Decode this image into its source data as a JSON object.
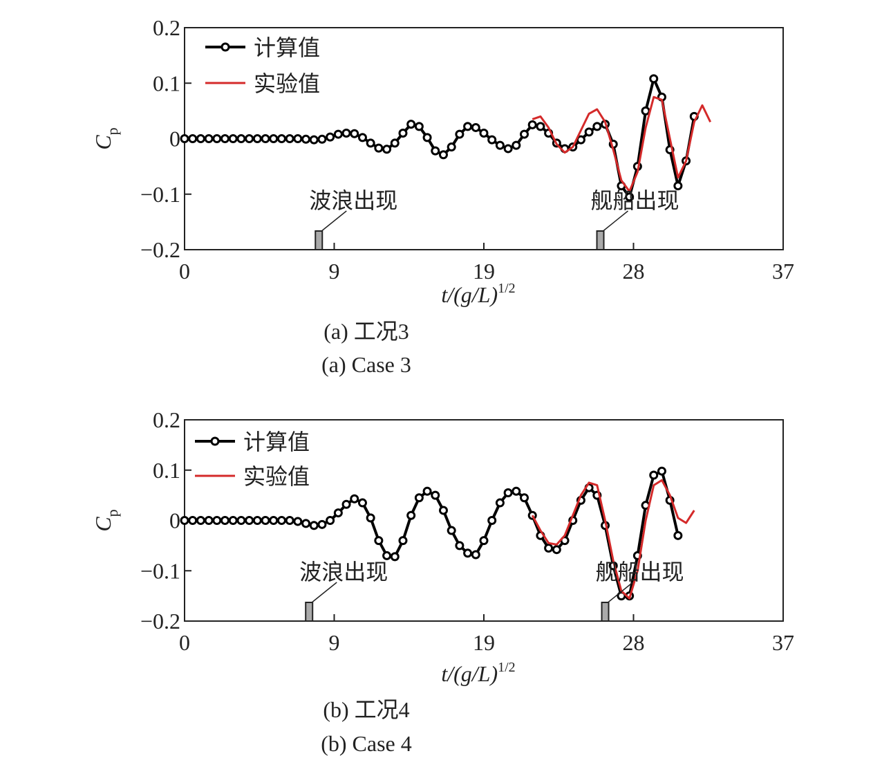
{
  "chart_data": [
    {
      "type": "line",
      "caption": "(a) 工况3",
      "caption_en": "(a) Case 3",
      "ylabel": "C",
      "ylabel_sub": "p",
      "xlabel": "t/(g/L)",
      "xlabel_sup": "1/2",
      "xlim": [
        0,
        37
      ],
      "ylim": [
        -0.2,
        0.2
      ],
      "xticks": [
        0,
        {
          "value": 9.25,
          "label": "9"
        },
        {
          "value": 18.5,
          "label": "19"
        },
        {
          "value": 27.75,
          "label": "28"
        },
        37
      ],
      "yticks": [
        {
          "value": -0.2,
          "label": "−0.2"
        },
        {
          "value": -0.1,
          "label": "−0.1"
        },
        0,
        0.1,
        0.2
      ],
      "legend": "upper left",
      "x": [
        0,
        0.5,
        1,
        1.5,
        2,
        2.5,
        3,
        3.5,
        4,
        4.5,
        5,
        5.5,
        6,
        6.5,
        7,
        7.5,
        8,
        8.5,
        9,
        9.5,
        10,
        10.5,
        11,
        11.5,
        12,
        12.5,
        13,
        13.5,
        14,
        14.5,
        15,
        15.5,
        16,
        16.5,
        17,
        17.5,
        18,
        18.5,
        19,
        19.5,
        20,
        20.5,
        21,
        21.5,
        22,
        22.5,
        23,
        23.5,
        24,
        24.5,
        25,
        25.5,
        26,
        26.5,
        27,
        27.5,
        28,
        28.5,
        29,
        29.5,
        30,
        30.5,
        31,
        31.5,
        32,
        32.5
      ],
      "series": [
        {
          "name": "计算值",
          "color": "#000000",
          "marker": "circle",
          "values": [
            0,
            0,
            0,
            0,
            0,
            0,
            0,
            0,
            0,
            0,
            0,
            0,
            0,
            0,
            0,
            -0.001,
            -0.002,
            -0.001,
            0.003,
            0.008,
            0.01,
            0.009,
            0.002,
            -0.008,
            -0.017,
            -0.019,
            -0.008,
            0.01,
            0.026,
            0.022,
            0.002,
            -0.022,
            -0.029,
            -0.015,
            0.008,
            0.022,
            0.02,
            0.01,
            -0.002,
            -0.012,
            -0.018,
            -0.012,
            0.008,
            0.025,
            0.022,
            0.01,
            -0.008,
            -0.018,
            -0.015,
            -0.002,
            0.012,
            0.022,
            0.026,
            -0.01,
            -0.085,
            -0.105,
            -0.05,
            0.05,
            0.108,
            0.075,
            -0.02,
            -0.085,
            -0.04,
            0.04,
            null,
            null
          ]
        },
        {
          "name": "实验值",
          "color": "#d42a2a",
          "values": [
            null,
            null,
            null,
            null,
            null,
            null,
            null,
            null,
            null,
            null,
            null,
            null,
            null,
            null,
            null,
            null,
            null,
            null,
            null,
            null,
            null,
            null,
            null,
            null,
            null,
            null,
            null,
            null,
            null,
            null,
            null,
            null,
            null,
            null,
            null,
            null,
            null,
            null,
            null,
            null,
            null,
            null,
            null,
            0.035,
            0.04,
            0.02,
            -0.01,
            -0.025,
            -0.015,
            0.015,
            0.045,
            0.053,
            0.03,
            -0.02,
            -0.075,
            -0.095,
            -0.06,
            0.02,
            0.075,
            0.07,
            0.0,
            -0.07,
            -0.04,
            0.03,
            0.06,
            0.03
          ]
        }
      ],
      "annotations": [
        {
          "text": "波浪出现",
          "x": 8.3
        },
        {
          "text": "舰船出现",
          "x": 25.7
        }
      ]
    },
    {
      "type": "line",
      "caption": "(b) 工况4",
      "caption_en": "(b) Case 4",
      "ylabel": "C",
      "ylabel_sub": "p",
      "xlabel": "t/(g/L)",
      "xlabel_sup": "1/2",
      "xlim": [
        0,
        37
      ],
      "ylim": [
        -0.2,
        0.2
      ],
      "xticks": [
        0,
        {
          "value": 9.25,
          "label": "9"
        },
        {
          "value": 18.5,
          "label": "19"
        },
        {
          "value": 27.75,
          "label": "28"
        },
        37
      ],
      "yticks": [
        {
          "value": -0.2,
          "label": "−0.2"
        },
        {
          "value": -0.1,
          "label": "−0.1"
        },
        0,
        0.1,
        0.2
      ],
      "legend": "upper left",
      "x": [
        0,
        0.5,
        1,
        1.5,
        2,
        2.5,
        3,
        3.5,
        4,
        4.5,
        5,
        5.5,
        6,
        6.5,
        7,
        7.5,
        8,
        8.5,
        9,
        9.5,
        10,
        10.5,
        11,
        11.5,
        12,
        12.5,
        13,
        13.5,
        14,
        14.5,
        15,
        15.5,
        16,
        16.5,
        17,
        17.5,
        18,
        18.5,
        19,
        19.5,
        20,
        20.5,
        21,
        21.5,
        22,
        22.5,
        23,
        23.5,
        24,
        24.5,
        25,
        25.5,
        26,
        26.5,
        27,
        27.5,
        28,
        28.5,
        29,
        29.5,
        30,
        30.5,
        31,
        31.5,
        32,
        32.5
      ],
      "series": [
        {
          "name": "计算值",
          "color": "#000000",
          "marker": "circle",
          "values": [
            0,
            0,
            0,
            0,
            0,
            0,
            0,
            0,
            0,
            0,
            0,
            0,
            0,
            0,
            -0.002,
            -0.006,
            -0.01,
            -0.008,
            0.0,
            0.015,
            0.032,
            0.043,
            0.035,
            0.005,
            -0.04,
            -0.07,
            -0.072,
            -0.04,
            0.01,
            0.045,
            0.058,
            0.05,
            0.02,
            -0.02,
            -0.05,
            -0.065,
            -0.068,
            -0.04,
            0.0,
            0.035,
            0.055,
            0.058,
            0.045,
            0.01,
            -0.03,
            -0.055,
            -0.058,
            -0.04,
            0.0,
            0.04,
            0.065,
            0.05,
            -0.01,
            -0.09,
            -0.15,
            -0.15,
            -0.07,
            0.03,
            0.09,
            0.098,
            0.04,
            -0.03,
            null,
            null,
            null,
            null
          ]
        },
        {
          "name": "实验值",
          "color": "#d42a2a",
          "values": [
            null,
            null,
            null,
            null,
            null,
            null,
            null,
            null,
            null,
            null,
            null,
            null,
            null,
            null,
            null,
            null,
            null,
            null,
            null,
            null,
            null,
            null,
            null,
            null,
            null,
            null,
            null,
            null,
            null,
            null,
            null,
            null,
            null,
            null,
            null,
            null,
            null,
            null,
            null,
            null,
            null,
            null,
            null,
            0.01,
            -0.02,
            -0.045,
            -0.048,
            -0.03,
            0.01,
            0.05,
            0.075,
            0.07,
            0.0,
            -0.08,
            -0.14,
            -0.155,
            -0.1,
            0.0,
            0.07,
            0.08,
            0.05,
            0.005,
            -0.005,
            0.02,
            null,
            null
          ]
        }
      ],
      "annotations": [
        {
          "text": "波浪出现",
          "x": 7.7
        },
        {
          "text": "舰船出现",
          "x": 26.0
        }
      ]
    }
  ]
}
